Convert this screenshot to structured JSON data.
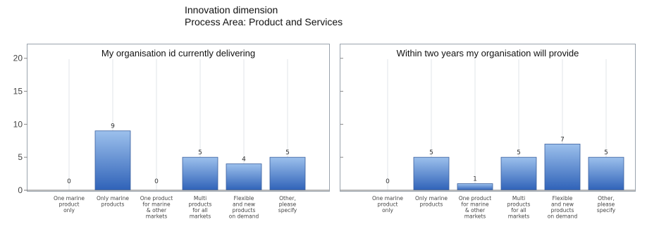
{
  "header": {
    "line1": "Innovation dimension",
    "line2": "Process Area: Product and Services"
  },
  "colors": {
    "bar_top": "#9cc0ec",
    "bar_bottom": "#2f62b8",
    "bar_stroke": "#3a5f9e",
    "gridline": "#e2e6ea",
    "axis": "#9aa3ad"
  },
  "chart_data": [
    {
      "type": "bar",
      "title": "My organisation id currently   delivering",
      "categories": [
        [
          "One marine",
          "product",
          "only"
        ],
        [
          "Only marine",
          "products"
        ],
        [
          "One product",
          "for marine",
          "& other",
          "markets"
        ],
        [
          "Multi",
          "products",
          "for all",
          "markets"
        ],
        [
          "Flexible",
          "and new",
          "products",
          "on demand"
        ],
        [
          "Other,",
          "please",
          "specify"
        ]
      ],
      "values": [
        0,
        9,
        0,
        5,
        4,
        5
      ],
      "ylim": [
        0,
        22
      ],
      "yticks": [
        0,
        5,
        10,
        15,
        20
      ],
      "grid": true
    },
    {
      "type": "bar",
      "title": "Within two years my organisation will provide",
      "categories": [
        [
          "One marine",
          "product",
          "only"
        ],
        [
          "Only marine",
          "products"
        ],
        [
          "One product",
          "for marine",
          "& other",
          "markets"
        ],
        [
          "Multi",
          "products",
          "for all",
          "markets"
        ],
        [
          "Flexible",
          "and new",
          "products",
          "on demand"
        ],
        [
          "Other,",
          "please",
          "specify"
        ]
      ],
      "values": [
        0,
        5,
        1,
        5,
        7,
        5
      ],
      "ylim": [
        0,
        22
      ],
      "yticks": [],
      "grid": true
    }
  ]
}
